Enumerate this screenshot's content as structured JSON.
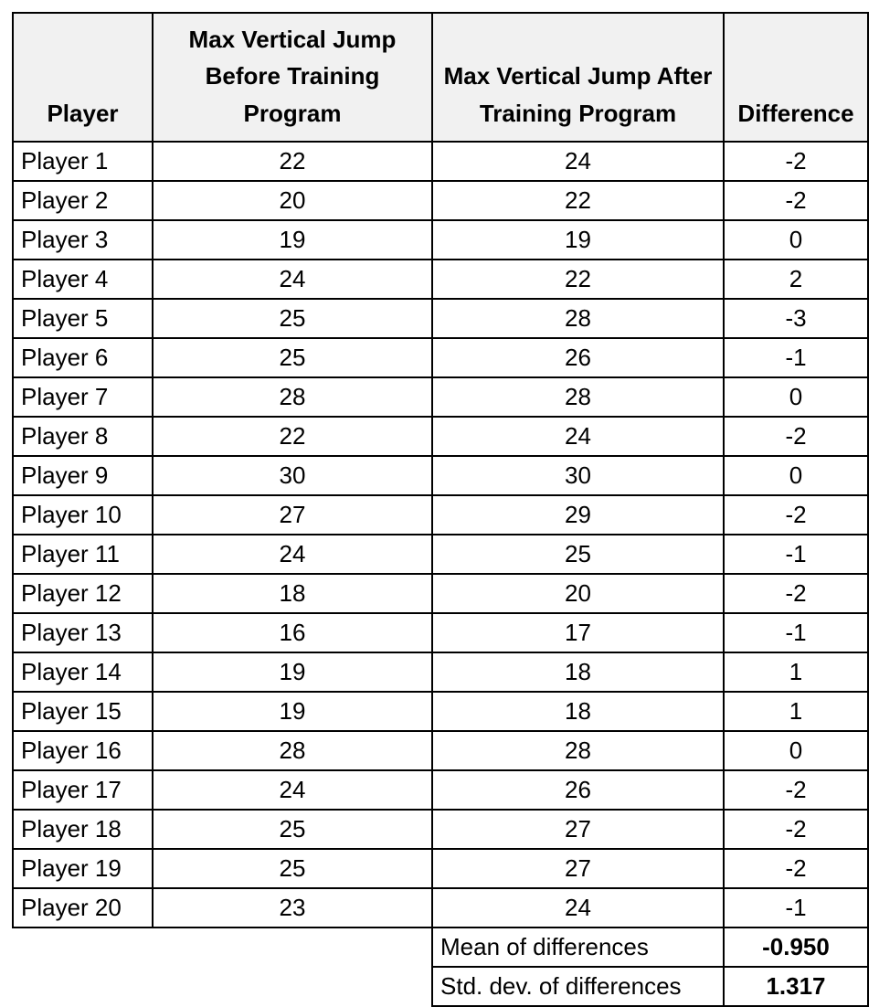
{
  "chart_data": {
    "type": "table",
    "title": "",
    "headers": [
      "Player",
      "Max Vertical Jump Before Training Program",
      "Max Vertical Jump After Training Program",
      "Difference"
    ],
    "rows": [
      {
        "player": "Player 1",
        "before": 22,
        "after": 24,
        "diff": -2
      },
      {
        "player": "Player 2",
        "before": 20,
        "after": 22,
        "diff": -2
      },
      {
        "player": "Player 3",
        "before": 19,
        "after": 19,
        "diff": 0
      },
      {
        "player": "Player 4",
        "before": 24,
        "after": 22,
        "diff": 2
      },
      {
        "player": "Player 5",
        "before": 25,
        "after": 28,
        "diff": -3
      },
      {
        "player": "Player 6",
        "before": 25,
        "after": 26,
        "diff": -1
      },
      {
        "player": "Player 7",
        "before": 28,
        "after": 28,
        "diff": 0
      },
      {
        "player": "Player 8",
        "before": 22,
        "after": 24,
        "diff": -2
      },
      {
        "player": "Player 9",
        "before": 30,
        "after": 30,
        "diff": 0
      },
      {
        "player": "Player 10",
        "before": 27,
        "after": 29,
        "diff": -2
      },
      {
        "player": "Player 11",
        "before": 24,
        "after": 25,
        "diff": -1
      },
      {
        "player": "Player 12",
        "before": 18,
        "after": 20,
        "diff": -2
      },
      {
        "player": "Player 13",
        "before": 16,
        "after": 17,
        "diff": -1
      },
      {
        "player": "Player 14",
        "before": 19,
        "after": 18,
        "diff": 1
      },
      {
        "player": "Player 15",
        "before": 19,
        "after": 18,
        "diff": 1
      },
      {
        "player": "Player 16",
        "before": 28,
        "after": 28,
        "diff": 0
      },
      {
        "player": "Player 17",
        "before": 24,
        "after": 26,
        "diff": -2
      },
      {
        "player": "Player 18",
        "before": 25,
        "after": 27,
        "diff": -2
      },
      {
        "player": "Player 19",
        "before": 25,
        "after": 27,
        "diff": -2
      },
      {
        "player": "Player 20",
        "before": 23,
        "after": 24,
        "diff": -1
      }
    ],
    "summary": [
      {
        "label": "Mean of differences",
        "value": "-0.950"
      },
      {
        "label": "Std. dev. of differences",
        "value": "1.317"
      }
    ],
    "colors": {
      "header_bg": "#f1f1f1",
      "border": "#000000",
      "text": "#000000",
      "row_bg": "#ffffff"
    }
  }
}
